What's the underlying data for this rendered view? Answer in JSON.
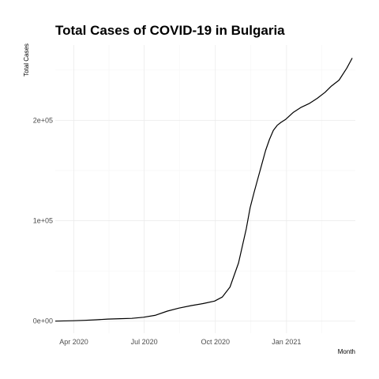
{
  "chart_data": {
    "type": "line",
    "title": "Total Cases of COVID-19 in Bulgaria",
    "xlabel": "Month",
    "ylabel": "Total Cases",
    "x_tick_labels": [
      "Apr 2020",
      "Jul 2020",
      "Oct 2020",
      "Jan 2021"
    ],
    "x_ticks": [
      "2020-04-01",
      "2020-07-01",
      "2020-10-01",
      "2021-01-01"
    ],
    "y_tick_labels": [
      "0e+00",
      "1e+05",
      "2e+05"
    ],
    "y_ticks": [
      0,
      100000,
      200000
    ],
    "xlim": [
      "2020-03-08",
      "2021-03-31"
    ],
    "ylim": [
      -12000,
      275000
    ],
    "grid": true,
    "line_color": "#000000",
    "series": [
      {
        "x": [
          "2020-03-08",
          "2020-03-31",
          "2020-04-15",
          "2020-04-30",
          "2020-05-15",
          "2020-05-31",
          "2020-06-15",
          "2020-06-30",
          "2020-07-15",
          "2020-07-31",
          "2020-08-15",
          "2020-08-31",
          "2020-09-15",
          "2020-09-30",
          "2020-10-10",
          "2020-10-20",
          "2020-10-31",
          "2020-11-05",
          "2020-11-10",
          "2020-11-15",
          "2020-11-20",
          "2020-11-25",
          "2020-11-30",
          "2020-12-05",
          "2020-12-10",
          "2020-12-15",
          "2020-12-20",
          "2020-12-25",
          "2020-12-31",
          "2021-01-10",
          "2021-01-20",
          "2021-01-31",
          "2021-02-10",
          "2021-02-20",
          "2021-02-28",
          "2021-03-10",
          "2021-03-20",
          "2021-03-27"
        ],
        "y": [
          0,
          400,
          800,
          1400,
          2100,
          2500,
          2800,
          3900,
          5800,
          10000,
          13000,
          15500,
          17500,
          20000,
          24000,
          34000,
          58000,
          75000,
          92000,
          113000,
          128000,
          142000,
          156000,
          170000,
          181000,
          190000,
          195000,
          198000,
          201000,
          208000,
          213000,
          217000,
          222000,
          228000,
          234000,
          240000,
          252000,
          262000
        ]
      }
    ]
  }
}
